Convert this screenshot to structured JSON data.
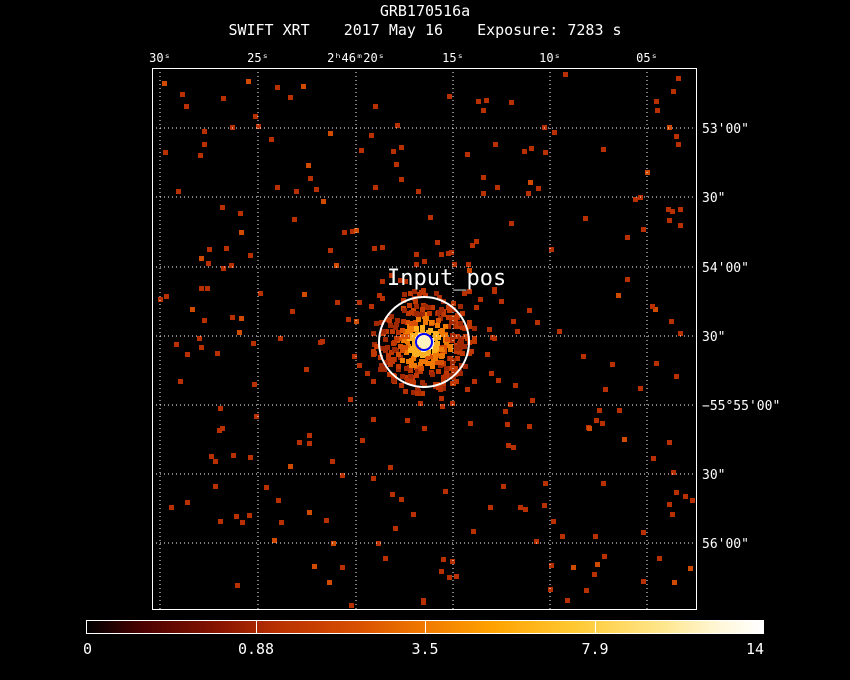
{
  "header": {
    "object": "GRB170516a",
    "telescope": "SWIFT XRT",
    "date": "2017 May 16",
    "exposure": "Exposure: 7283 s"
  },
  "image": {
    "ra_ticks": [
      "30ˢ",
      "25ˢ",
      "2ʰ46ᵐ20ˢ",
      "15ˢ",
      "10ˢ",
      "05ˢ"
    ],
    "dec_ticks": [
      "53'00\"",
      "30\"",
      "54'00\"",
      "30\"",
      "−55°55'00\"",
      "30\"",
      "56'00\""
    ],
    "region_label": "Input_pos",
    "colors": {
      "grid": "#ffffff",
      "region": "#ffffff",
      "marker": "#0000ff"
    }
  },
  "colorbar": {
    "labels": [
      "0",
      "0.88",
      "3.5",
      "7.9",
      "14"
    ],
    "cmap": "hot"
  }
}
